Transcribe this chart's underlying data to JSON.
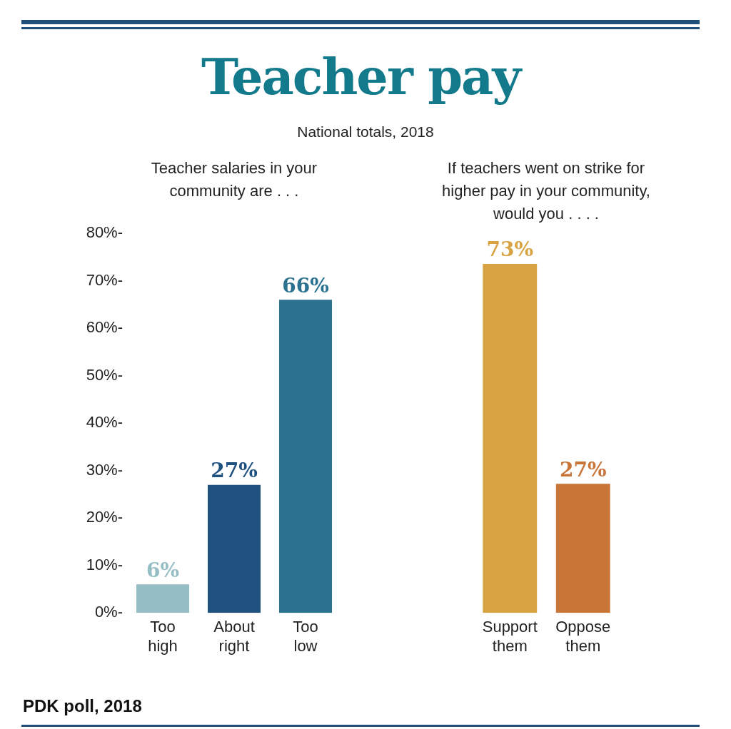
{
  "chart_data": [
    {
      "type": "other",
      "title": "Teacher pay",
      "subtitle": "National totals, 2018",
      "annotations": [
        "PDK poll, 2018"
      ]
    },
    {
      "type": "bar",
      "title": "Teacher salaries in your community are . . .",
      "categories": [
        "Too high",
        "About right",
        "Too low"
      ],
      "values": [
        6,
        27,
        66
      ],
      "colors": [
        "#95bdc4",
        "#1f5180",
        "#2b7190"
      ],
      "value_labels": [
        "6%",
        "27%",
        "66%"
      ],
      "ylim": [
        0,
        80
      ],
      "yticks": [
        {
          "value": 0,
          "label": "0%-"
        },
        {
          "value": 10,
          "label": "10%-"
        },
        {
          "value": 20,
          "label": "20%-"
        },
        {
          "value": 30,
          "label": "30%-"
        },
        {
          "value": 40,
          "label": "40%-"
        },
        {
          "value": 50,
          "label": "50%-"
        },
        {
          "value": 60,
          "label": "60%-"
        },
        {
          "value": 70,
          "label": "70%-"
        },
        {
          "value": 80,
          "label": "80%-"
        }
      ],
      "grid": false
    },
    {
      "type": "bar",
      "title": "If teachers went on strike for higher pay in your community, would you . . . .",
      "categories": [
        "Support them",
        "Oppose them"
      ],
      "values": [
        73,
        27
      ],
      "colors": [
        "#d8a443",
        "#c87538"
      ],
      "value_labels": [
        "73%",
        "27%"
      ],
      "ylim": [
        0,
        80
      ],
      "tick_labels": "x",
      "grid": false
    }
  ]
}
